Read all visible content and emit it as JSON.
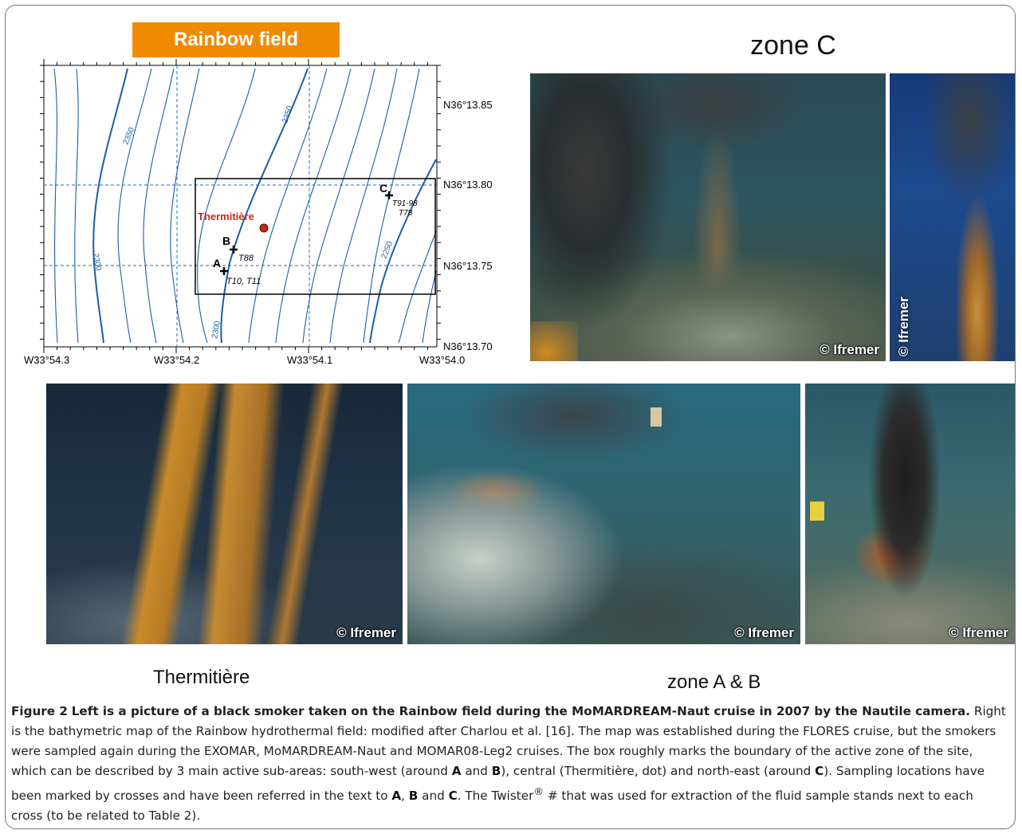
{
  "map": {
    "banner": "Rainbow field",
    "lon_labels": [
      "W33°54.3",
      "W33°54.2",
      "W33°54.1",
      "W33°54.0"
    ],
    "lat_labels": [
      "N36°13.85",
      "N36°13.80",
      "N36°13.75",
      "N36°13.70"
    ],
    "contour_labels": [
      "2350",
      "2300",
      "2350",
      "2300",
      "2250"
    ],
    "site_name": "Thermitière",
    "sites": [
      {
        "letter": "A",
        "twister": "T10, T11"
      },
      {
        "letter": "B",
        "twister": "T88"
      },
      {
        "letter": "C",
        "twister_1": "T91-98",
        "twister_2": "T78"
      }
    ],
    "colors": {
      "contour": "#1a5fa8",
      "banner": "#f08a00",
      "site_dot": "#c8281e",
      "site_text": "#c8281e"
    }
  },
  "photos": {
    "zone_c_title": "zone C",
    "credit": "© Ifremer",
    "thermitiere_label": "Thermitière",
    "zone_ab_label": "zone A & B"
  },
  "caption": {
    "figure_label": "Figure 2",
    "bold_sentence": "Left is a picture of a black smoker taken on the Rainbow field during the MoMARDREAM-Naut cruise in 2007 by the Nautile camera.",
    "s1": "Right is the bathymetric map of the Rainbow hydrothermal field: modified after Charlou et al. [16]. The map was established during the FLORES cruise, but the smokers were sampled again during the EXOMAR, MoMARDREAM-Naut and MOMAR08-Leg2 cruises. The box roughly marks the boundary of the active zone of the site, which can be described by 3 main active sub-areas: south-west (around",
    "A": "A",
    "and": "and",
    "B": "B",
    "s2": "), central (Thermitière, dot) and north-east (around",
    "C": "C",
    "s3": "). Sampling locations have been marked by crosses and have been referred in the text to",
    "s4": ",",
    "s5": "and",
    "s6": ".",
    "s7": "The Twister",
    "reg": "®",
    "s8": "# that was used for extraction of the fluid sample stands next to each cross (to be related to Table 2)."
  }
}
